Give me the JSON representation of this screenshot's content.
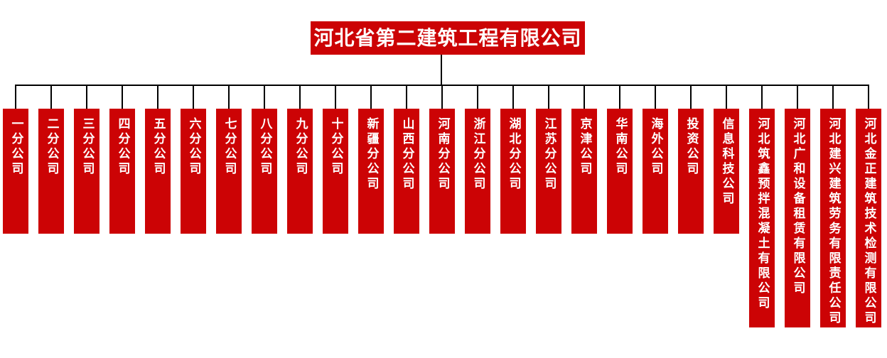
{
  "org_chart": {
    "title": "河北省第二建筑工程有限公司",
    "colors": {
      "box": "#CC0305",
      "text": "#FFFFFF",
      "line": "#000000",
      "background": "#FFFFFF"
    },
    "children": [
      {
        "label": "一分公司"
      },
      {
        "label": "二分公司"
      },
      {
        "label": "三分公司"
      },
      {
        "label": "四分公司"
      },
      {
        "label": "五分公司"
      },
      {
        "label": "六分公司"
      },
      {
        "label": "七分公司"
      },
      {
        "label": "八分公司"
      },
      {
        "label": "九分公司"
      },
      {
        "label": "十分公司"
      },
      {
        "label": "新疆分公司"
      },
      {
        "label": "山西分公司"
      },
      {
        "label": "河南分公司"
      },
      {
        "label": "浙江分公司"
      },
      {
        "label": "湖北分公司"
      },
      {
        "label": "江苏分公司"
      },
      {
        "label": "京津公司"
      },
      {
        "label": "华南公司"
      },
      {
        "label": "海外公司"
      },
      {
        "label": "投资公司"
      },
      {
        "label": "信息科技公司"
      },
      {
        "label": "河北筑鑫预拌混凝土有限公司"
      },
      {
        "label": "河北广和设备租赁有限公司"
      },
      {
        "label": "河北建兴建筑劳务有限责任公司"
      },
      {
        "label": "河北金正建筑技术检测有限公司"
      }
    ]
  }
}
